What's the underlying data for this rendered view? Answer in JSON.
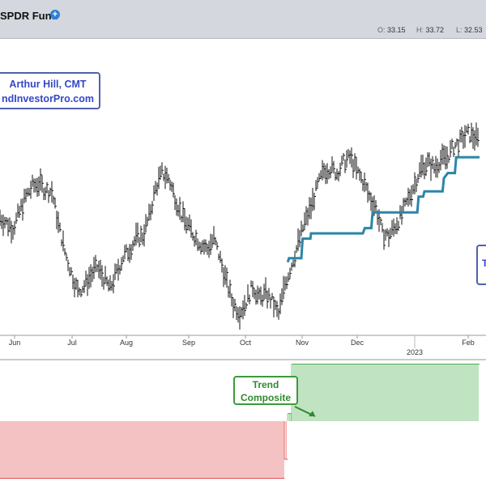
{
  "header": {
    "title": "SPDR Fund",
    "ohlc": {
      "open_label": "O:",
      "open": "33.15",
      "high_label": "H:",
      "high": "33.72",
      "low_label": "L:",
      "low": "32.53"
    }
  },
  "annotations": {
    "author_line1": "Arthur Hill, CMT",
    "author_line2": "ndInvestorPro.com",
    "right_box_text": "T",
    "trend_composite_line1": "Trend",
    "trend_composite_line2": "Composite"
  },
  "colors": {
    "price_bars": "#111111",
    "trend_line": "#2a86a8",
    "composite_positive": "#4caf50",
    "composite_negative": "#e05050",
    "annotation_border": "#5060b0",
    "annotation_text": "#3448c8",
    "label_green": "#2e8b2e"
  },
  "chart_data": [
    {
      "type": "ohlc",
      "x_tick_labels": [
        "Jun",
        "Jul",
        "Aug",
        "Sep",
        "Oct",
        "Nov",
        "Dec",
        "2023",
        "Feb"
      ],
      "price_path": [
        [
          0,
          27.0
        ],
        [
          2,
          26.2
        ],
        [
          3,
          27.4
        ],
        [
          4,
          28.6
        ],
        [
          5,
          29.4
        ],
        [
          6,
          29.6
        ],
        [
          7,
          29.1
        ],
        [
          8,
          29.0
        ],
        [
          9,
          26.5
        ],
        [
          10,
          24.4
        ],
        [
          11,
          22.8
        ],
        [
          12,
          21.4
        ],
        [
          13,
          21.8
        ],
        [
          14,
          22.6
        ],
        [
          15,
          23.2
        ],
        [
          16,
          22.4
        ],
        [
          17,
          21.6
        ],
        [
          18,
          22.8
        ],
        [
          19,
          24.0
        ],
        [
          20,
          24.6
        ],
        [
          21,
          25.4
        ],
        [
          22,
          25.6
        ],
        [
          23,
          27.0
        ],
        [
          24,
          29.2
        ],
        [
          25,
          30.4
        ],
        [
          26,
          30.0
        ],
        [
          27,
          28.6
        ],
        [
          28,
          27.2
        ],
        [
          29,
          26.4
        ],
        [
          30,
          25.6
        ],
        [
          31,
          25.0
        ],
        [
          32,
          24.6
        ],
        [
          33,
          25.4
        ],
        [
          34,
          23.8
        ],
        [
          35,
          22.0
        ],
        [
          36,
          20.4
        ],
        [
          37,
          19.8
        ],
        [
          38,
          20.6
        ],
        [
          39,
          21.8
        ],
        [
          40,
          20.8
        ],
        [
          41,
          21.2
        ],
        [
          42,
          20.6
        ],
        [
          43,
          19.6
        ],
        [
          44,
          22.0
        ],
        [
          45,
          23.4
        ],
        [
          46,
          25.0
        ],
        [
          47,
          26.6
        ],
        [
          48,
          27.8
        ],
        [
          49,
          29.4
        ],
        [
          50,
          30.6
        ],
        [
          51,
          30.8
        ],
        [
          52,
          30.4
        ],
        [
          53,
          31.2
        ],
        [
          54,
          31.6
        ],
        [
          55,
          30.6
        ],
        [
          56,
          29.8
        ],
        [
          57,
          28.6
        ],
        [
          58,
          27.8
        ],
        [
          59,
          25.8
        ],
        [
          60,
          25.6
        ],
        [
          61,
          26.4
        ],
        [
          62,
          27.2
        ],
        [
          63,
          28.4
        ],
        [
          64,
          29.6
        ],
        [
          65,
          30.8
        ],
        [
          66,
          31.2
        ],
        [
          67,
          30.8
        ],
        [
          68,
          31.4
        ],
        [
          69,
          31.6
        ],
        [
          70,
          32.4
        ],
        [
          71,
          32.8
        ],
        [
          72,
          33.4
        ],
        [
          73,
          33.2
        ],
        [
          74,
          32.8
        ]
      ],
      "trend_line": [
        [
          44.4,
          23.6
        ],
        [
          44.6,
          23.9
        ],
        [
          46.5,
          23.9
        ],
        [
          46.7,
          25.4
        ],
        [
          47.9,
          25.4
        ],
        [
          48.0,
          25.8
        ],
        [
          56.0,
          25.8
        ],
        [
          56.3,
          26.2
        ],
        [
          57.3,
          26.2
        ],
        [
          57.5,
          27.4
        ],
        [
          64.4,
          27.4
        ],
        [
          64.6,
          28.6
        ],
        [
          65.3,
          28.6
        ],
        [
          65.5,
          29.0
        ],
        [
          68.3,
          29.0
        ],
        [
          68.5,
          30.0
        ],
        [
          69.1,
          30.4
        ],
        [
          70.2,
          30.4
        ],
        [
          70.4,
          31.6
        ],
        [
          74.0,
          31.6
        ]
      ]
    },
    {
      "type": "bar",
      "composite": [
        {
          "start": 0,
          "end": 43.9,
          "value": -3
        },
        {
          "start": 43.9,
          "end": 44.4,
          "value": -2
        },
        {
          "start": 44.4,
          "end": 45.0,
          "value": 0.4
        },
        {
          "start": 45.0,
          "end": 74.0,
          "value": 3
        }
      ]
    }
  ]
}
